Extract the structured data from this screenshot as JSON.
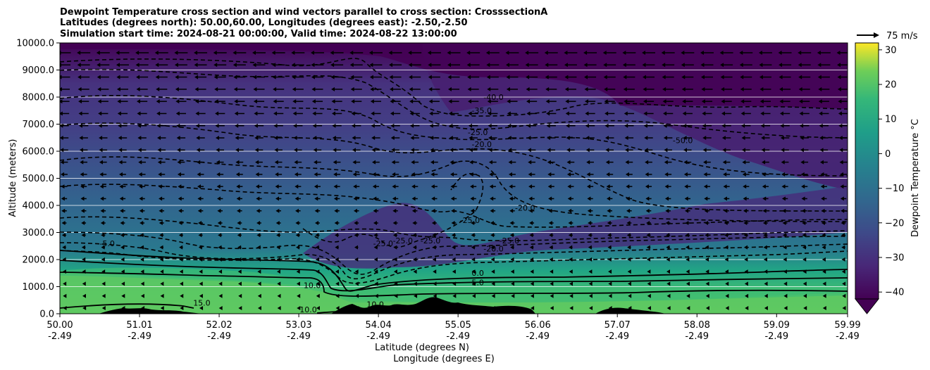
{
  "chart_data": {
    "type": "heatmap",
    "title": [
      "Dewpoint Temperature cross section and wind vectors parallel to cross section: CrosssectionA",
      "Latitudes (degrees north): 50.00,60.00, Longitudes (degrees east): -2.50,-2.50",
      "Simulation start time: 2024-08-21 00:00:00, Valid time: 2024-08-22 13:00:00"
    ],
    "xlabel": "Latitude (degrees N)",
    "xlabel2": "Longitude (degrees E)",
    "ylabel": "Altitude (meters)",
    "x_ticks": [
      {
        "lat": "50.00",
        "lon": "-2.49"
      },
      {
        "lat": "51.01",
        "lon": "-2.49"
      },
      {
        "lat": "52.02",
        "lon": "-2.49"
      },
      {
        "lat": "53.03",
        "lon": "-2.49"
      },
      {
        "lat": "54.04",
        "lon": "-2.49"
      },
      {
        "lat": "55.05",
        "lon": "-2.49"
      },
      {
        "lat": "56.06",
        "lon": "-2.49"
      },
      {
        "lat": "57.07",
        "lon": "-2.49"
      },
      {
        "lat": "58.08",
        "lon": "-2.49"
      },
      {
        "lat": "59.09",
        "lon": "-2.49"
      },
      {
        "lat": "59.99",
        "lon": "-2.49"
      }
    ],
    "y_ticks": [
      "0.0",
      "1000.0",
      "2000.0",
      "3000.0",
      "4000.0",
      "5000.0",
      "6000.0",
      "7000.0",
      "8000.0",
      "9000.0",
      "10000.0"
    ],
    "xlim": [
      50.0,
      59.99
    ],
    "ylim": [
      0,
      10000
    ],
    "grid": "horizontal",
    "colorbar": {
      "label": "Dewpoint Temperature °C",
      "range": [
        -42,
        32
      ],
      "ticks": [
        "30",
        "20",
        "10",
        "0",
        "−10",
        "−20",
        "−30",
        "−40"
      ],
      "tick_values": [
        30,
        20,
        10,
        0,
        -10,
        -20,
        -30,
        -40
      ],
      "colormap": "viridis",
      "extend": "min"
    },
    "quiver_key": "75 m/s",
    "wind_direction": "toward lower latitude",
    "contour_labels": [
      {
        "text": "-40.0",
        "lat": 55.5,
        "alt": 7900
      },
      {
        "text": "-35.0",
        "lat": 55.35,
        "alt": 7400
      },
      {
        "text": "-25.0",
        "lat": 55.3,
        "alt": 6600
      },
      {
        "text": "-20.0",
        "lat": 55.35,
        "alt": 6150
      },
      {
        "text": "-20.0",
        "lat": 55.9,
        "alt": 3800
      },
      {
        "text": "-25.0",
        "lat": 55.2,
        "alt": 3350
      },
      {
        "text": "-25.0",
        "lat": 54.1,
        "alt": 2500
      },
      {
        "text": "-25.0",
        "lat": 54.35,
        "alt": 2600
      },
      {
        "text": "-25.0",
        "lat": 54.7,
        "alt": 2600
      },
      {
        "text": "-25.0",
        "lat": 55.7,
        "alt": 2600
      },
      {
        "text": "-20.0",
        "lat": 55.5,
        "alt": 2300
      },
      {
        "text": "-5.0",
        "lat": 50.6,
        "alt": 2500
      },
      {
        "text": "0.0",
        "lat": 55.3,
        "alt": 1400
      },
      {
        "text": "5.0",
        "lat": 55.3,
        "alt": 1050
      },
      {
        "text": "10.0",
        "lat": 53.2,
        "alt": 950
      },
      {
        "text": "10.0",
        "lat": 53.15,
        "alt": 50
      },
      {
        "text": "10.0",
        "lat": 54.0,
        "alt": 250
      },
      {
        "text": "15.0",
        "lat": 51.8,
        "alt": 300
      },
      {
        "text": "-50.0",
        "lat": 57.9,
        "alt": 6300
      }
    ],
    "colors": {
      "background_low": "#5ec962",
      "background_mid": "#21918c",
      "background_high": "#3b528b",
      "background_top": "#440154",
      "terrain": "#000000"
    }
  }
}
